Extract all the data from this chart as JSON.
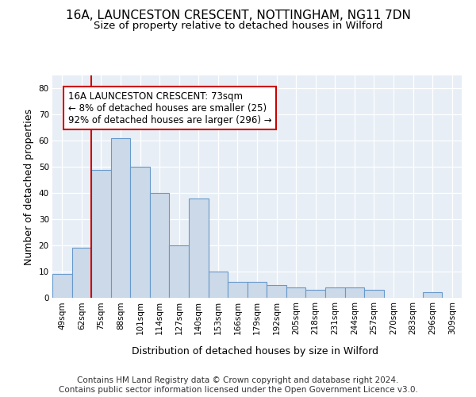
{
  "title1": "16A, LAUNCESTON CRESCENT, NOTTINGHAM, NG11 7DN",
  "title2": "Size of property relative to detached houses in Wilford",
  "xlabel": "Distribution of detached houses by size in Wilford",
  "ylabel": "Number of detached properties",
  "categories": [
    "49sqm",
    "62sqm",
    "75sqm",
    "88sqm",
    "101sqm",
    "114sqm",
    "127sqm",
    "140sqm",
    "153sqm",
    "166sqm",
    "179sqm",
    "192sqm",
    "205sqm",
    "218sqm",
    "231sqm",
    "244sqm",
    "257sqm",
    "270sqm",
    "283sqm",
    "296sqm",
    "309sqm"
  ],
  "values": [
    9,
    19,
    49,
    61,
    50,
    40,
    20,
    38,
    10,
    6,
    6,
    5,
    4,
    3,
    4,
    4,
    3,
    0,
    0,
    2,
    0
  ],
  "bar_color": "#ccd9e8",
  "bar_edge_color": "#6699cc",
  "ylim": [
    0,
    85
  ],
  "yticks": [
    0,
    10,
    20,
    30,
    40,
    50,
    60,
    70,
    80
  ],
  "property_label": "16A LAUNCESTON CRESCENT: 73sqm",
  "annotation_line1": "← 8% of detached houses are smaller (25)",
  "annotation_line2": "92% of detached houses are larger (296) →",
  "redline_bar_index": 2,
  "footer1": "Contains HM Land Registry data © Crown copyright and database right 2024.",
  "footer2": "Contains public sector information licensed under the Open Government Licence v3.0.",
  "bg_color": "#ffffff",
  "plot_bg_color": "#e8eef5",
  "grid_color": "#ffffff",
  "annotation_box_color": "#ffffff",
  "annotation_border_color": "#cc0000",
  "title_fontsize": 11,
  "subtitle_fontsize": 9.5,
  "axis_label_fontsize": 9,
  "tick_fontsize": 7.5,
  "footer_fontsize": 7.5,
  "annotation_fontsize": 8.5
}
